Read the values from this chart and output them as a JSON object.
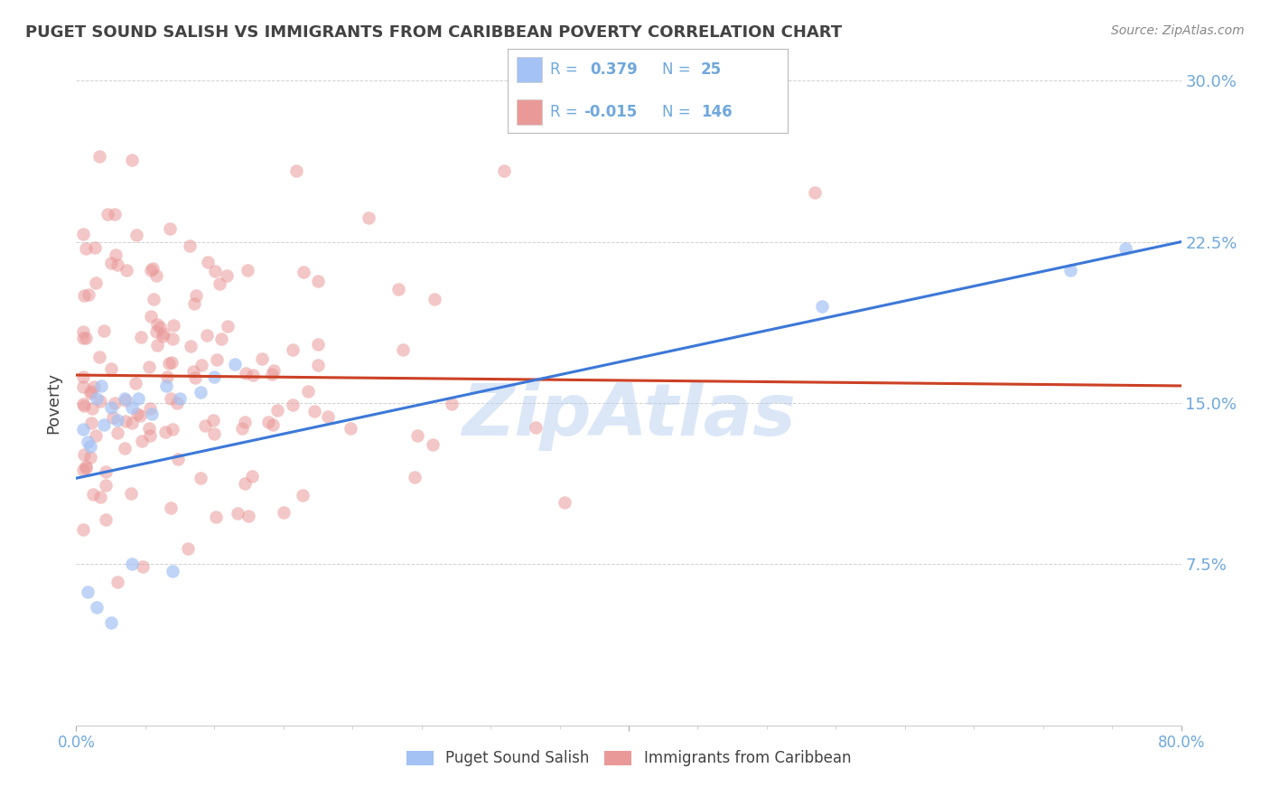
{
  "title": "PUGET SOUND SALISH VS IMMIGRANTS FROM CARIBBEAN POVERTY CORRELATION CHART",
  "source": "Source: ZipAtlas.com",
  "ylabel": "Poverty",
  "xlim": [
    0.0,
    0.8
  ],
  "ylim": [
    0.0,
    0.3
  ],
  "blue_R": 0.379,
  "blue_N": 25,
  "pink_R": -0.015,
  "pink_N": 146,
  "blue_color": "#a4c2f4",
  "pink_color": "#ea9999",
  "blue_line_color": "#3c78d8",
  "pink_line_color": "#cc4125",
  "legend_label_blue": "Puget Sound Salish",
  "legend_label_pink": "Immigrants from Caribbean",
  "watermark": "ZipAtlas",
  "background_color": "#ffffff",
  "grid_color": "#cccccc",
  "title_color": "#434343",
  "axis_label_color": "#434343",
  "tick_color": "#6fa8dc",
  "source_color": "#888888",
  "legend_text_color": "#6fa8dc",
  "blue_line_y0": 0.115,
  "blue_line_y1": 0.225,
  "pink_line_y0": 0.163,
  "pink_line_y1": 0.158
}
